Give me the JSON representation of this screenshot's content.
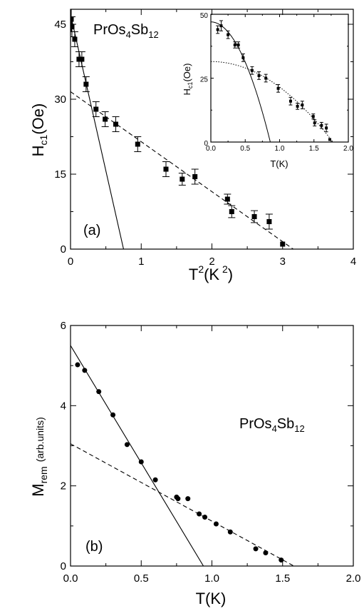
{
  "chart_data": [
    {
      "panel": "a",
      "type": "scatter",
      "annotation": "(a)",
      "compound": {
        "base": "PrOs",
        "s1": "4",
        "mid": "Sb",
        "s2": "12"
      },
      "xlabel": {
        "base": "T",
        "sup": "2",
        "rest": "(K",
        "sup2": " 2",
        "close": ")"
      },
      "ylabel": {
        "base": "H",
        "sub": "c1",
        "rest": "(Oe)"
      },
      "xlim": [
        0,
        4
      ],
      "ylim": [
        0,
        48
      ],
      "xticks": [
        "0",
        "1",
        "2",
        "3",
        "4"
      ],
      "yticks": [
        "0",
        "15",
        "30",
        "45"
      ],
      "points": [
        {
          "x": 0.01,
          "y": 46,
          "err": 2.5
        },
        {
          "x": 0.02,
          "y": 44.5,
          "err": 2
        },
        {
          "x": 0.06,
          "y": 42,
          "err": 1.5
        },
        {
          "x": 0.12,
          "y": 38,
          "err": 1.5
        },
        {
          "x": 0.16,
          "y": 38,
          "err": 1.5
        },
        {
          "x": 0.22,
          "y": 33,
          "err": 1.5
        },
        {
          "x": 0.36,
          "y": 28,
          "err": 1.5
        },
        {
          "x": 0.49,
          "y": 26,
          "err": 1.5
        },
        {
          "x": 0.64,
          "y": 25,
          "err": 1.5
        },
        {
          "x": 0.95,
          "y": 21,
          "err": 1.5
        },
        {
          "x": 1.35,
          "y": 16,
          "err": 1.5
        },
        {
          "x": 1.58,
          "y": 14,
          "err": 1.2
        },
        {
          "x": 1.76,
          "y": 14.5,
          "err": 1.5
        },
        {
          "x": 2.22,
          "y": 10,
          "err": 1
        },
        {
          "x": 2.28,
          "y": 7.5,
          "err": 1.2
        },
        {
          "x": 2.6,
          "y": 6.5,
          "err": 1.2
        },
        {
          "x": 2.81,
          "y": 5.5,
          "err": 1.5
        },
        {
          "x": 3.0,
          "y": 1,
          "err": 0
        }
      ],
      "lines": [
        {
          "style": "solid",
          "x": [
            0,
            0.75
          ],
          "y": [
            47,
            0
          ]
        },
        {
          "style": "dashed",
          "x": [
            0,
            3.15
          ],
          "y": [
            31.5,
            0
          ]
        }
      ],
      "inset": {
        "xlabel": "T(K)",
        "ylabel": {
          "base": "H",
          "sub": "c1",
          "rest": "(Oe)"
        },
        "xlim": [
          0,
          2
        ],
        "ylim": [
          0,
          50
        ],
        "xticks": [
          "0.0",
          "0.5",
          "1.0",
          "1.5",
          "2.0"
        ],
        "yticks": [
          "0",
          "25",
          "50"
        ],
        "points": [
          {
            "x": 0.1,
            "y": 44,
            "err": 1.5
          },
          {
            "x": 0.15,
            "y": 45.5,
            "err": 2
          },
          {
            "x": 0.25,
            "y": 42,
            "err": 1.5
          },
          {
            "x": 0.35,
            "y": 38,
            "err": 1.2
          },
          {
            "x": 0.4,
            "y": 38,
            "err": 1.2
          },
          {
            "x": 0.47,
            "y": 33,
            "err": 1.5
          },
          {
            "x": 0.6,
            "y": 28,
            "err": 1.5
          },
          {
            "x": 0.7,
            "y": 26,
            "err": 1.5
          },
          {
            "x": 0.8,
            "y": 25,
            "err": 1.5
          },
          {
            "x": 0.98,
            "y": 21,
            "err": 1.5
          },
          {
            "x": 1.16,
            "y": 16,
            "err": 1.5
          },
          {
            "x": 1.26,
            "y": 14,
            "err": 1.2
          },
          {
            "x": 1.33,
            "y": 14.5,
            "err": 1.5
          },
          {
            "x": 1.49,
            "y": 10,
            "err": 1
          },
          {
            "x": 1.51,
            "y": 7.5,
            "err": 1.2
          },
          {
            "x": 1.61,
            "y": 6.5,
            "err": 1.2
          },
          {
            "x": 1.68,
            "y": 5.5,
            "err": 1.5
          },
          {
            "x": 1.73,
            "y": 1,
            "err": 0
          }
        ],
        "solid_curve": {
          "x0": 0.865,
          "y0": 47
        },
        "dotted_curve": {
          "x0": 1.775,
          "y0": 31.5
        }
      }
    },
    {
      "panel": "b",
      "type": "scatter",
      "annotation": "(b)",
      "compound": {
        "base": "PrOs",
        "s1": "4",
        "mid": "Sb",
        "s2": "12"
      },
      "xlabel": "T(K)",
      "ylabel": {
        "base": "M",
        "sub": "rem",
        "rest": "(arb.units)"
      },
      "xlim": [
        0,
        2
      ],
      "ylim": [
        0,
        6
      ],
      "xticks": [
        "0.0",
        "0.5",
        "1.0",
        "1.5",
        "2.0"
      ],
      "yticks": [
        "0",
        "2",
        "4",
        "6"
      ],
      "points": [
        {
          "x": 0.05,
          "y": 5.02
        },
        {
          "x": 0.1,
          "y": 4.88
        },
        {
          "x": 0.2,
          "y": 4.35
        },
        {
          "x": 0.3,
          "y": 3.77
        },
        {
          "x": 0.4,
          "y": 3.03
        },
        {
          "x": 0.5,
          "y": 2.6
        },
        {
          "x": 0.6,
          "y": 2.15
        },
        {
          "x": 0.75,
          "y": 1.72
        },
        {
          "x": 0.76,
          "y": 1.68
        },
        {
          "x": 0.83,
          "y": 1.68
        },
        {
          "x": 0.91,
          "y": 1.3
        },
        {
          "x": 0.95,
          "y": 1.22
        },
        {
          "x": 1.03,
          "y": 1.05
        },
        {
          "x": 1.13,
          "y": 0.85
        },
        {
          "x": 1.31,
          "y": 0.43
        },
        {
          "x": 1.38,
          "y": 0.33
        },
        {
          "x": 1.49,
          "y": 0.15
        }
      ],
      "lines": [
        {
          "style": "solid",
          "x": [
            0,
            0.94
          ],
          "y": [
            5.5,
            0
          ]
        },
        {
          "style": "dashed",
          "x": [
            0,
            1.58
          ],
          "y": [
            3.05,
            0
          ]
        }
      ]
    }
  ]
}
